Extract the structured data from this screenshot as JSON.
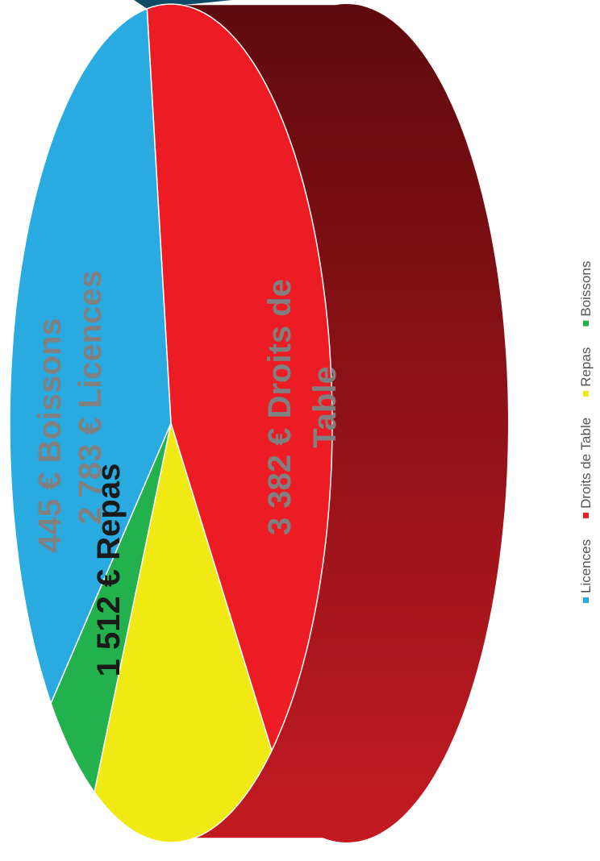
{
  "chart_data": {
    "type": "pie",
    "style": "3d",
    "orientation": "rotated-90-ccw",
    "currency": "€",
    "slices": [
      {
        "name": "Licences",
        "value": 2783,
        "color": "#29abe2",
        "label_lines": [
          "2 783 € Licences"
        ],
        "label_color": "#808080"
      },
      {
        "name": "Droits de Table",
        "value": 3382,
        "color": "#ed1c24",
        "label_lines": [
          "3 382 € Droits de",
          "Table"
        ],
        "label_color": "#808080"
      },
      {
        "name": "Repas",
        "value": 1512,
        "color": "#f0e914",
        "label_lines": [
          "1 512 € Repas"
        ],
        "label_color": "#1a1a1a"
      },
      {
        "name": "Boissons",
        "value": 445,
        "color": "#22b14c",
        "label_lines": [
          "445  € Boissons"
        ],
        "label_color": "#808080"
      }
    ],
    "legend": {
      "position": "right",
      "items": [
        {
          "label": "Licences",
          "color": "#29abe2"
        },
        {
          "label": "Droits de Table",
          "color": "#ed1c24"
        },
        {
          "label": "Repas",
          "color": "#f0e914"
        },
        {
          "label": "Boissons",
          "color": "#22b14c"
        }
      ]
    },
    "side_colors": {
      "dark": "#5e0a0e",
      "light": "#c41a22",
      "boissons_edge": "#0d4a66"
    }
  }
}
